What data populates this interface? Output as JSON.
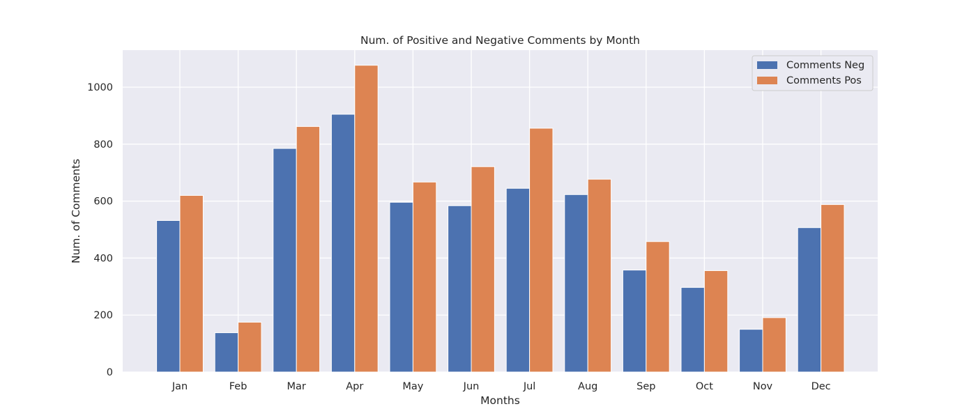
{
  "chart_data": {
    "type": "bar",
    "title": "Num. of Positive and Negative Comments by Month",
    "xlabel": "Months",
    "ylabel": "Num. of Comments",
    "categories": [
      "Jan",
      "Feb",
      "Mar",
      "Apr",
      "May",
      "Jun",
      "Jul",
      "Aug",
      "Sep",
      "Oct",
      "Nov",
      "Dec"
    ],
    "series": [
      {
        "name": "Comments Neg",
        "color": "#4c72b0",
        "values": [
          532,
          138,
          785,
          905,
          596,
          584,
          645,
          623,
          358,
          297,
          150,
          507
        ]
      },
      {
        "name": "Comments Pos",
        "color": "#dd8452",
        "values": [
          620,
          175,
          862,
          1077,
          667,
          721,
          856,
          677,
          458,
          356,
          191,
          588
        ]
      }
    ],
    "ylim": [
      0,
      1130
    ],
    "yticks": [
      0,
      200,
      400,
      600,
      800,
      1000
    ],
    "grid": true,
    "legend_position": "top-right",
    "background_color": "#eaeaf2",
    "grid_color": "#ffffff"
  }
}
